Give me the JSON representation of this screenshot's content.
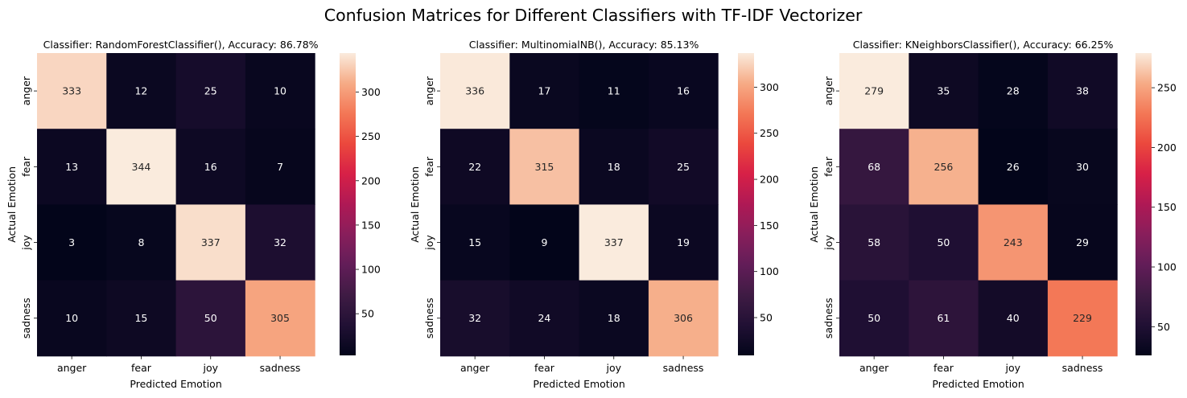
{
  "figure": {
    "title": "Confusion Matrices for Different Classifiers with TF-IDF Vectorizer"
  },
  "chart_data": [
    {
      "type": "heatmap",
      "title": "Classifier: RandomForestClassifier(), Accuracy: 86.78%",
      "xlabel": "Predicted Emotion",
      "ylabel": "Actual Emotion",
      "x_categories": [
        "anger",
        "fear",
        "joy",
        "sadness"
      ],
      "y_categories": [
        "anger",
        "fear",
        "joy",
        "sadness"
      ],
      "matrix": [
        [
          333,
          12,
          25,
          10
        ],
        [
          13,
          344,
          16,
          7
        ],
        [
          3,
          8,
          337,
          32
        ],
        [
          10,
          15,
          50,
          305
        ]
      ],
      "vmin": 3,
      "vmax": 344,
      "colorbar_ticks": [
        50,
        100,
        150,
        200,
        250,
        300
      ],
      "colormap": "rocket"
    },
    {
      "type": "heatmap",
      "title": "Classifier: MultinomialNB(), Accuracy: 85.13%",
      "xlabel": "Predicted Emotion",
      "ylabel": "Actual Emotion",
      "x_categories": [
        "anger",
        "fear",
        "joy",
        "sadness"
      ],
      "y_categories": [
        "anger",
        "fear",
        "joy",
        "sadness"
      ],
      "matrix": [
        [
          336,
          17,
          11,
          16
        ],
        [
          22,
          315,
          18,
          25
        ],
        [
          15,
          9,
          337,
          19
        ],
        [
          32,
          24,
          18,
          306
        ]
      ],
      "vmin": 9,
      "vmax": 337,
      "colorbar_ticks": [
        50,
        100,
        150,
        200,
        250,
        300
      ],
      "colormap": "rocket"
    },
    {
      "type": "heatmap",
      "title": "Classifier: KNeighborsClassifier(), Accuracy: 66.25%",
      "xlabel": "Predicted Emotion",
      "ylabel": "Actual Emotion",
      "x_categories": [
        "anger",
        "fear",
        "joy",
        "sadness"
      ],
      "y_categories": [
        "anger",
        "fear",
        "joy",
        "sadness"
      ],
      "matrix": [
        [
          279,
          35,
          28,
          38
        ],
        [
          68,
          256,
          26,
          30
        ],
        [
          58,
          50,
          243,
          29
        ],
        [
          50,
          61,
          40,
          229
        ]
      ],
      "vmin": 26,
      "vmax": 279,
      "colorbar_ticks": [
        50,
        100,
        150,
        200,
        250
      ],
      "colormap": "rocket"
    }
  ]
}
